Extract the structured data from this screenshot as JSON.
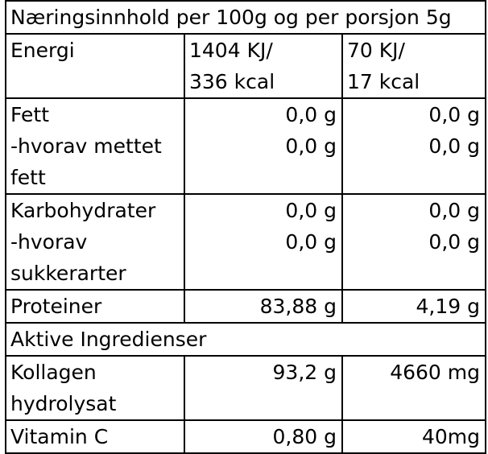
{
  "table": {
    "header": "Næringsinnhold per 100g og per porsjon 5g",
    "energy": {
      "label": "Energi",
      "per100_line1": "1404 KJ/",
      "per100_line2": "336 kcal",
      "portion_line1": "70 KJ/",
      "portion_line2": "17 kcal"
    },
    "fat": {
      "label": "Fett",
      "per100": "0,0 g",
      "portion": "0,0 g",
      "sub_label_line1": "-hvorav mettet",
      "sub_label_line2": "fett",
      "sub_per100": "0,0 g",
      "sub_portion": "0,0 g"
    },
    "carbs": {
      "label": "Karbohydrater",
      "per100": "0,0 g",
      "portion": "0,0 g",
      "sub_label_line1": "-hvorav",
      "sub_label_line2": "sukkerarter",
      "sub_per100": "0,0 g",
      "sub_portion": "0,0 g"
    },
    "protein": {
      "label": "Proteiner",
      "per100": "83,88 g",
      "portion": "4,19 g"
    },
    "active_header": "Aktive Ingredienser",
    "collagen": {
      "label_line1": "Kollagen",
      "label_line2": "hydrolysat",
      "per100": "93,2 g",
      "portion": "4660 mg"
    },
    "vitamin_c": {
      "label": "Vitamin C",
      "per100": "0,80 g",
      "portion": "40mg"
    }
  }
}
